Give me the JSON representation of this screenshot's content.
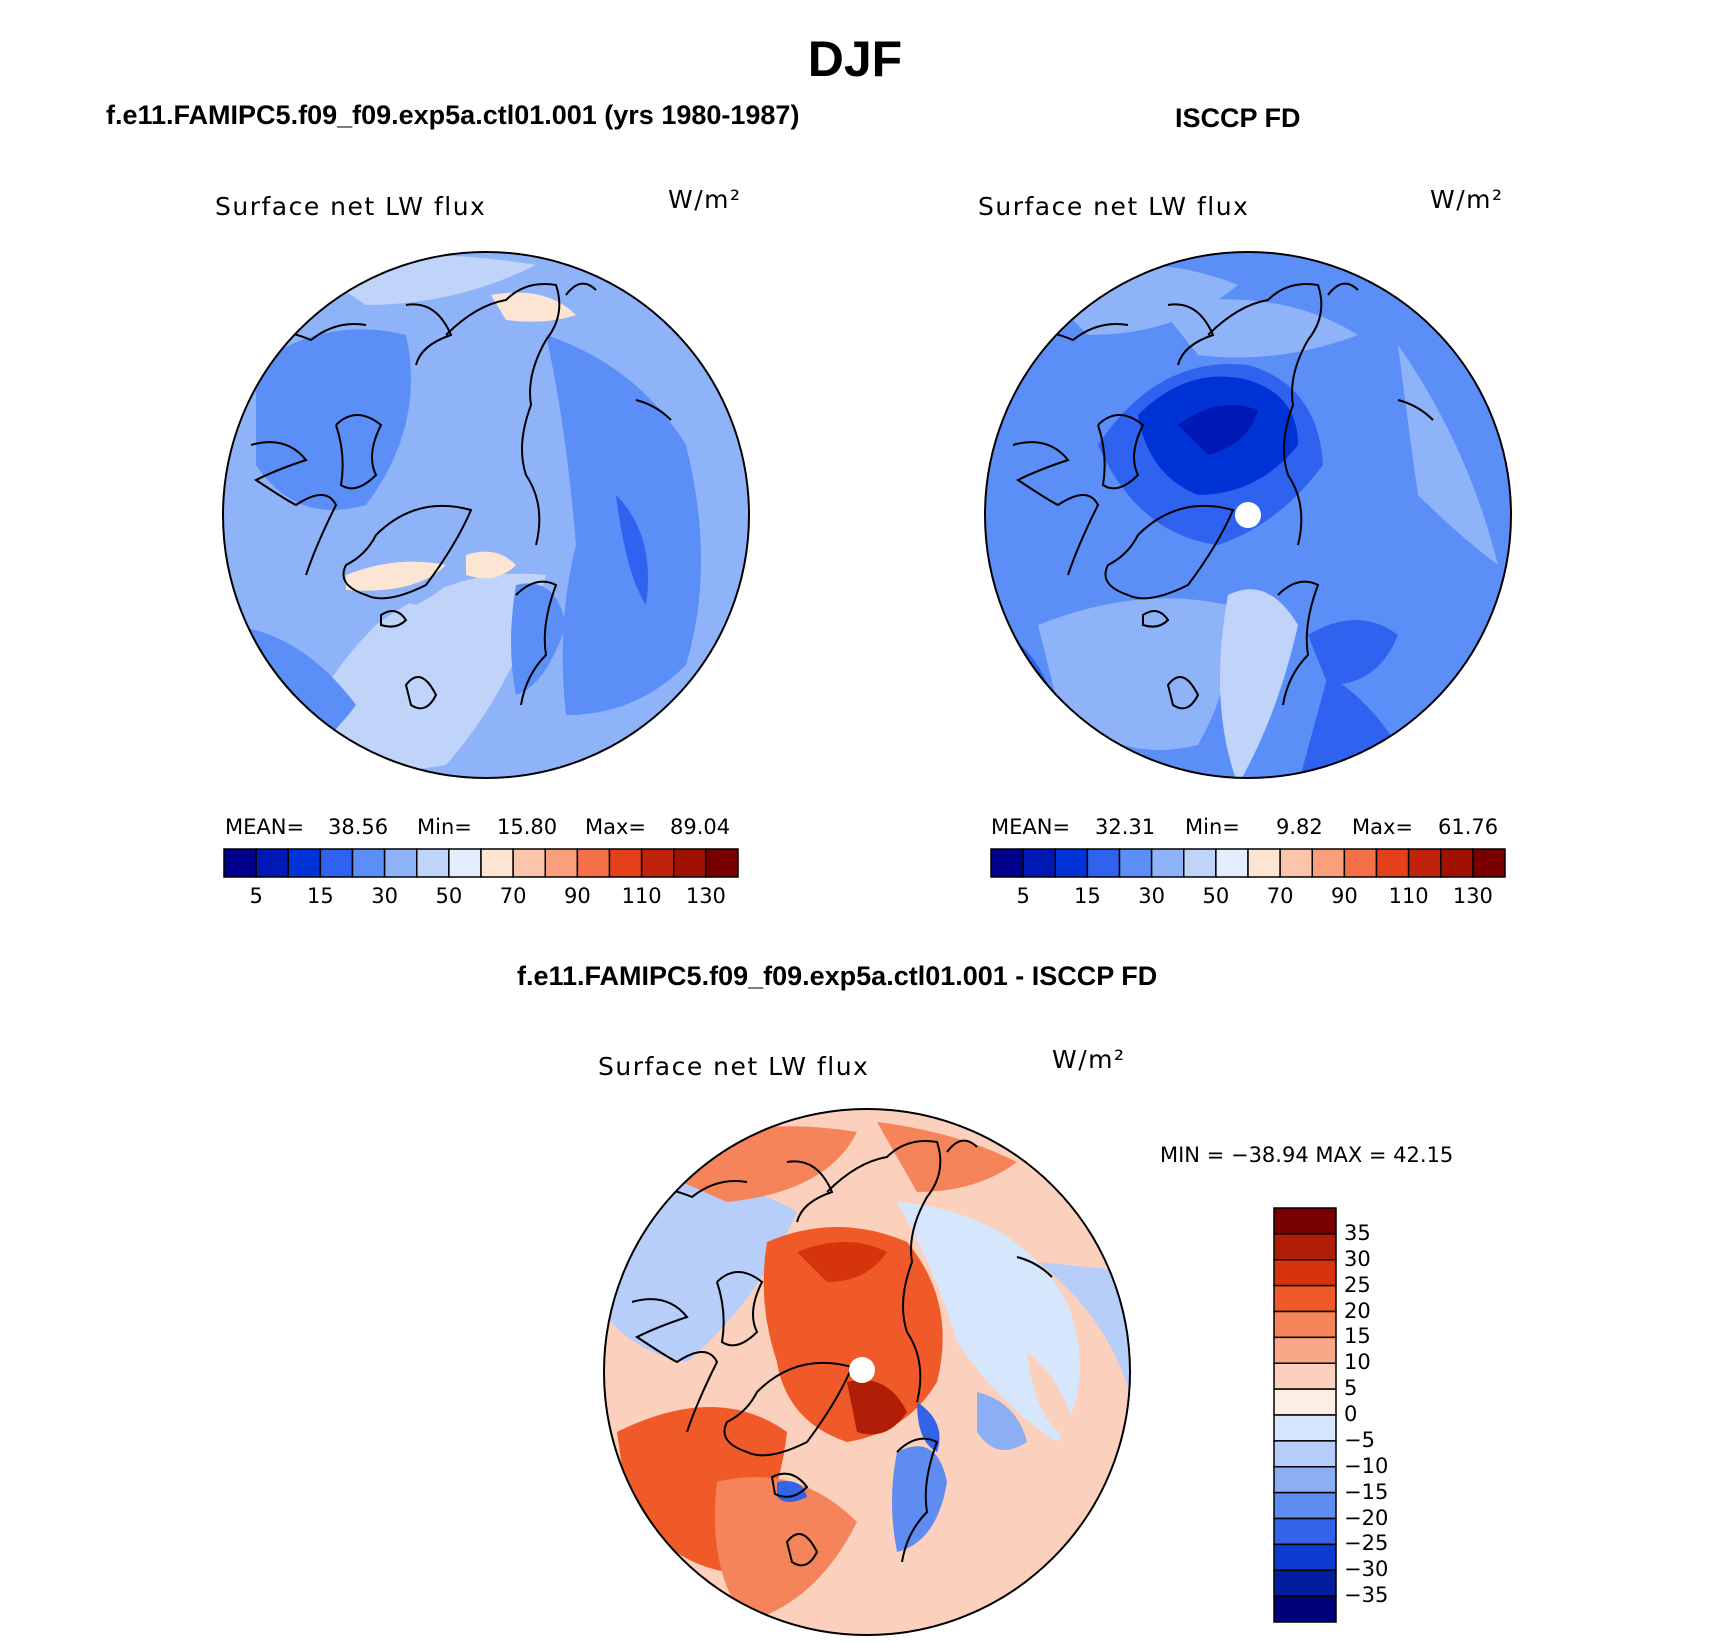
{
  "main_title": "DJF",
  "panels": [
    {
      "case_title": "f.e11.FAMIPC5.f09_f09.exp5a.ctl01.001 (yrs 1980-1987)",
      "var_title": "Surface net LW flux",
      "units": "W/m²",
      "stats": {
        "mean_label": "MEAN=",
        "mean": "38.56",
        "min_label": "Min=",
        "min": "15.80",
        "max_label": "Max=",
        "max": "89.04"
      }
    },
    {
      "case_title": "ISCCP FD",
      "var_title": "Surface net LW flux",
      "units": "W/m²",
      "stats": {
        "mean_label": "MEAN=",
        "mean": "32.31",
        "min_label": "Min=",
        "min": "9.82",
        "max_label": "Max=",
        "max": "61.76"
      }
    },
    {
      "case_title": "f.e11.FAMIPC5.f09_f09.exp5a.ctl01.001 - ISCCP FD",
      "var_title": "Surface net LW flux",
      "units": "W/m²",
      "stats": {
        "text": "MIN = −38.94 MAX =   42.15"
      }
    }
  ],
  "colorbars": {
    "field": {
      "colors": [
        "#00008b",
        "#0019b4",
        "#0033d6",
        "#2f63ef",
        "#5b8ef7",
        "#8fb3f8",
        "#c0d4fa",
        "#e3efff",
        "#fde5d4",
        "#fcc5a9",
        "#f99f7c",
        "#f47048",
        "#e4401a",
        "#c1220c",
        "#a01100",
        "#7a0000"
      ],
      "labels": [
        "5",
        "15",
        "30",
        "50",
        "70",
        "90",
        "110",
        "130"
      ]
    },
    "diff": {
      "colors_top_to_bottom": [
        "#7a0000",
        "#b01e07",
        "#d5340d",
        "#f05a28",
        "#f5845a",
        "#f8a888",
        "#fbd1bd",
        "#fdeee3",
        "#d6e6fd",
        "#b7cdfa",
        "#8caef5",
        "#5f8cf0",
        "#3364e8",
        "#0d3bd2",
        "#001e9e",
        "#00007a"
      ],
      "labels": [
        "35",
        "30",
        "25",
        "20",
        "15",
        "10",
        "5",
        "0",
        "−5",
        "−10",
        "−15",
        "−20",
        "−25",
        "−30",
        "−35"
      ]
    }
  },
  "chart_data": [
    {
      "type": "heatmap",
      "projection": "north polar stereographic",
      "title": "Surface net LW flux",
      "units": "W/m²",
      "mean": 38.56,
      "min": 15.8,
      "max": 89.04,
      "levels": [
        5,
        10,
        15,
        20,
        30,
        40,
        50,
        60,
        70,
        80,
        90,
        100,
        110,
        120,
        130
      ]
    },
    {
      "type": "heatmap",
      "projection": "north polar stereographic",
      "title": "Surface net LW flux",
      "units": "W/m²",
      "mean": 32.31,
      "min": 9.82,
      "max": 61.76,
      "levels": [
        5,
        10,
        15,
        20,
        30,
        40,
        50,
        60,
        70,
        80,
        90,
        100,
        110,
        120,
        130
      ]
    },
    {
      "type": "heatmap",
      "projection": "north polar stereographic",
      "title": "Surface net LW flux",
      "units": "W/m²",
      "min": -38.94,
      "max": 42.15,
      "levels": [
        -35,
        -30,
        -25,
        -20,
        -15,
        -10,
        -5,
        0,
        5,
        10,
        15,
        20,
        25,
        30,
        35
      ]
    }
  ]
}
